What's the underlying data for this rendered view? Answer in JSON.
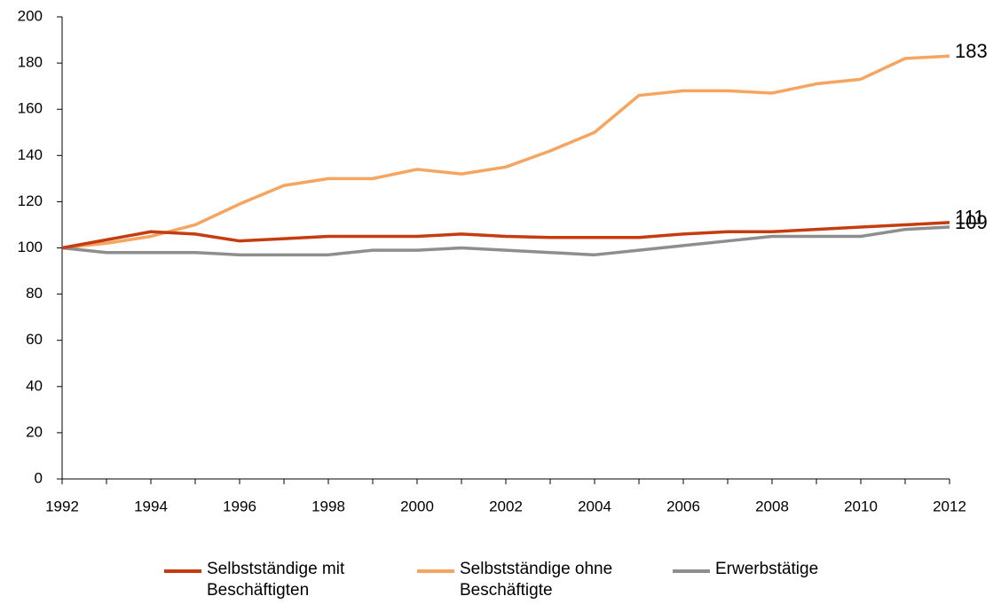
{
  "chart_data": {
    "type": "line",
    "x": [
      1992,
      1993,
      1994,
      1995,
      1996,
      1997,
      1998,
      1999,
      2000,
      2001,
      2002,
      2003,
      2004,
      2005,
      2006,
      2007,
      2008,
      2009,
      2010,
      2011,
      2012
    ],
    "series": [
      {
        "name": "Selbstständige mit Beschäftigten",
        "color": "#c53d0f",
        "values": [
          100,
          103.5,
          107,
          106,
          103,
          104,
          105,
          105,
          105,
          106,
          105,
          104.5,
          104.5,
          104.5,
          106,
          107,
          107,
          108,
          109,
          110,
          111
        ],
        "value_labels": [
          null,
          null,
          null,
          null,
          null,
          null,
          null,
          null,
          null,
          null,
          null,
          null,
          null,
          null,
          null,
          null,
          null,
          null,
          null,
          null,
          "111"
        ]
      },
      {
        "name": "Selbstständige ohne Beschäftigte",
        "color": "#f5a55f",
        "values": [
          100,
          102,
          105,
          110,
          119,
          127,
          130,
          130,
          134,
          132,
          135,
          142,
          150,
          166,
          168,
          168,
          167,
          171,
          173,
          182,
          183
        ],
        "value_labels": [
          null,
          null,
          null,
          null,
          null,
          null,
          null,
          null,
          null,
          null,
          null,
          null,
          null,
          null,
          null,
          null,
          null,
          null,
          null,
          null,
          "183"
        ]
      },
      {
        "name": "Erwerbstätige",
        "color": "#8e8e8e",
        "values": [
          100,
          98,
          98,
          98,
          97,
          97,
          97,
          99,
          99,
          100,
          99,
          98,
          97,
          99,
          101,
          103,
          105,
          105,
          105,
          108,
          109
        ],
        "value_labels": [
          null,
          null,
          null,
          null,
          null,
          null,
          null,
          null,
          null,
          null,
          null,
          null,
          null,
          null,
          null,
          null,
          null,
          null,
          null,
          null,
          "109"
        ]
      }
    ],
    "xlim": [
      1992,
      2012
    ],
    "xticks": [
      1992,
      1994,
      1996,
      1998,
      2000,
      2002,
      2004,
      2006,
      2008,
      2010,
      2012
    ],
    "ylim": [
      0,
      200
    ],
    "yticks": [
      0,
      20,
      40,
      60,
      80,
      100,
      120,
      140,
      160,
      180,
      200
    ],
    "legend": "bottom"
  }
}
